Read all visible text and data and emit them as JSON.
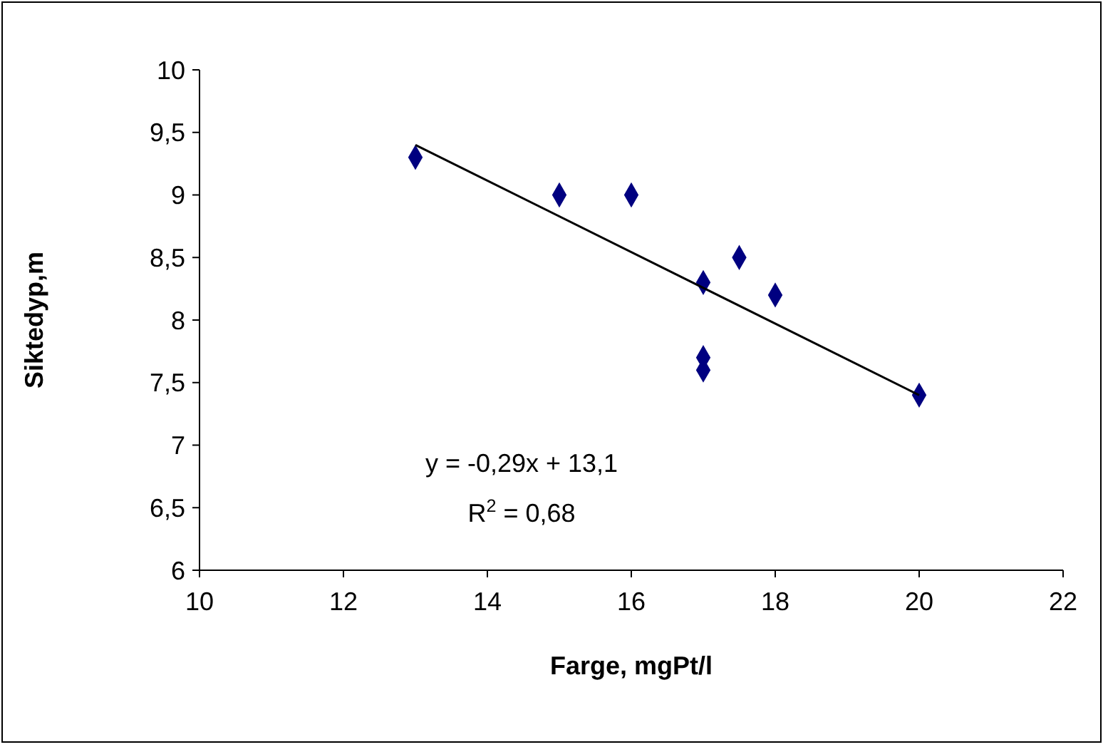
{
  "chart_data": {
    "type": "scatter",
    "xlabel": "Farge, mgPt/l",
    "ylabel": "Siktedyp,m",
    "xlim": [
      10,
      22
    ],
    "xticks": [
      10,
      12,
      14,
      16,
      18,
      20,
      22
    ],
    "ylim": [
      6,
      10
    ],
    "yticks": [
      6,
      {
        "value": 6.5,
        "label": "6,5"
      },
      7,
      {
        "value": 7.5,
        "label": "7,5"
      },
      8,
      {
        "value": 8.5,
        "label": "8,5"
      },
      9,
      {
        "value": 9.5,
        "label": "9,5"
      },
      10
    ],
    "series": [
      {
        "marker": "diamond",
        "color": "#000080",
        "x": [
          13,
          15,
          16,
          17,
          17.5,
          18,
          17,
          17,
          20
        ],
        "values": [
          9.3,
          9.0,
          9.0,
          8.3,
          8.5,
          8.2,
          7.7,
          7.6,
          7.4
        ]
      },
      {
        "type": "line",
        "color": "#000000",
        "x": [
          13,
          20
        ],
        "values": [
          9.4,
          7.4
        ]
      }
    ],
    "annotations": [
      "y = -0,29x + 13,1",
      "R$^{2}$ = 0,68"
    ]
  }
}
